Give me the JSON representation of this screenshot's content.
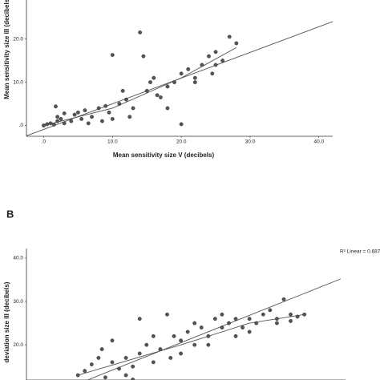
{
  "chart_data": [
    {
      "type": "scatter",
      "xlabel": "Mean sensitivity size V (decibels)",
      "ylabel": "Mean sensitivity size III (decibels)",
      "xlim": [
        -2.5,
        42
      ],
      "ylim": [
        -2.5,
        29
      ],
      "xticks": [
        {
          "value": 0,
          "label": ".0"
        },
        {
          "value": 10,
          "label": "10.0"
        },
        {
          "value": 20,
          "label": "20.0"
        },
        {
          "value": 30,
          "label": "30.0"
        },
        {
          "value": 40,
          "label": "40.0"
        }
      ],
      "yticks": [
        {
          "value": 0,
          "label": ".0"
        },
        {
          "value": 10,
          "label": "10.0"
        },
        {
          "value": 20,
          "label": "20.0"
        }
      ],
      "color": "#555555",
      "x": [
        0,
        0.5,
        1,
        1.5,
        2,
        2,
        2.5,
        3,
        3,
        1.75,
        4,
        4.5,
        5,
        5.5,
        6,
        7,
        8,
        9,
        9.5,
        10,
        10,
        11,
        11.5,
        12,
        13,
        14,
        14.5,
        15,
        15.5,
        16,
        16.5,
        17,
        18,
        19,
        20,
        20,
        21,
        22,
        23,
        24,
        24.5,
        25,
        26,
        27,
        28,
        12.5,
        18,
        6.5,
        8.5,
        22,
        25
      ],
      "y": [
        0,
        0.3,
        0.5,
        0.2,
        1,
        2,
        1.5,
        0.5,
        2.8,
        4.4,
        1,
        2.5,
        3,
        1.5,
        3.5,
        2,
        4,
        4.5,
        3,
        1.5,
        16.3,
        5,
        8,
        6,
        4,
        21.5,
        16,
        8,
        10,
        11,
        7,
        6.5,
        9,
        10,
        12,
        0.3,
        13,
        11,
        14,
        16,
        12,
        17,
        15,
        20.5,
        19,
        2,
        4,
        0.5,
        1,
        10,
        14
      ],
      "fit_line": {
        "x": [
          -2.5,
          42
        ],
        "y": [
          -2.4,
          24
        ]
      },
      "loess": {
        "x": [
          0,
          10,
          20,
          28
        ],
        "y": [
          0,
          4,
          11,
          18
        ]
      }
    },
    {
      "type": "scatter",
      "panel_label": "B",
      "ylabel": "deviation size III (decibels)",
      "annotation": "R² Linear = 0.687",
      "xlim": [
        -2.5,
        44
      ],
      "ylim": [
        11.9,
        42.2
      ],
      "yticks": [
        {
          "value": 20,
          "label": "20.0"
        },
        {
          "value": 30,
          "label": "30.0"
        },
        {
          "value": 40,
          "label": "40.0"
        }
      ],
      "color": "#555555",
      "x": [
        5,
        6,
        7,
        8,
        8.5,
        9,
        10,
        11,
        12,
        13,
        14,
        15,
        14,
        16,
        17,
        18,
        18.5,
        19,
        20,
        21,
        22,
        23,
        24,
        25,
        26,
        27,
        28,
        29,
        30,
        31,
        32,
        33,
        34,
        35,
        36,
        37,
        38,
        12,
        16,
        20,
        24,
        28,
        10,
        13,
        22,
        26,
        30,
        34,
        36
      ],
      "y": [
        13,
        14,
        15.5,
        17,
        19,
        12.5,
        16,
        14.5,
        17,
        15,
        18,
        20,
        26,
        22,
        19,
        27,
        17,
        22,
        21,
        23,
        20,
        24,
        22,
        26,
        27,
        25,
        26,
        24,
        26,
        25,
        27,
        28,
        26,
        30.5,
        27,
        26.5,
        27,
        13,
        16,
        18,
        20,
        22,
        21,
        12,
        25,
        24,
        23,
        25,
        25.5
      ],
      "fit_line": {
        "x": [
          6.4,
          43.3
        ],
        "y": [
          11.9,
          35.2
        ]
      },
      "loess": {
        "x": [
          5,
          20,
          30,
          38
        ],
        "y": [
          13,
          20,
          25,
          27
        ]
      }
    }
  ]
}
